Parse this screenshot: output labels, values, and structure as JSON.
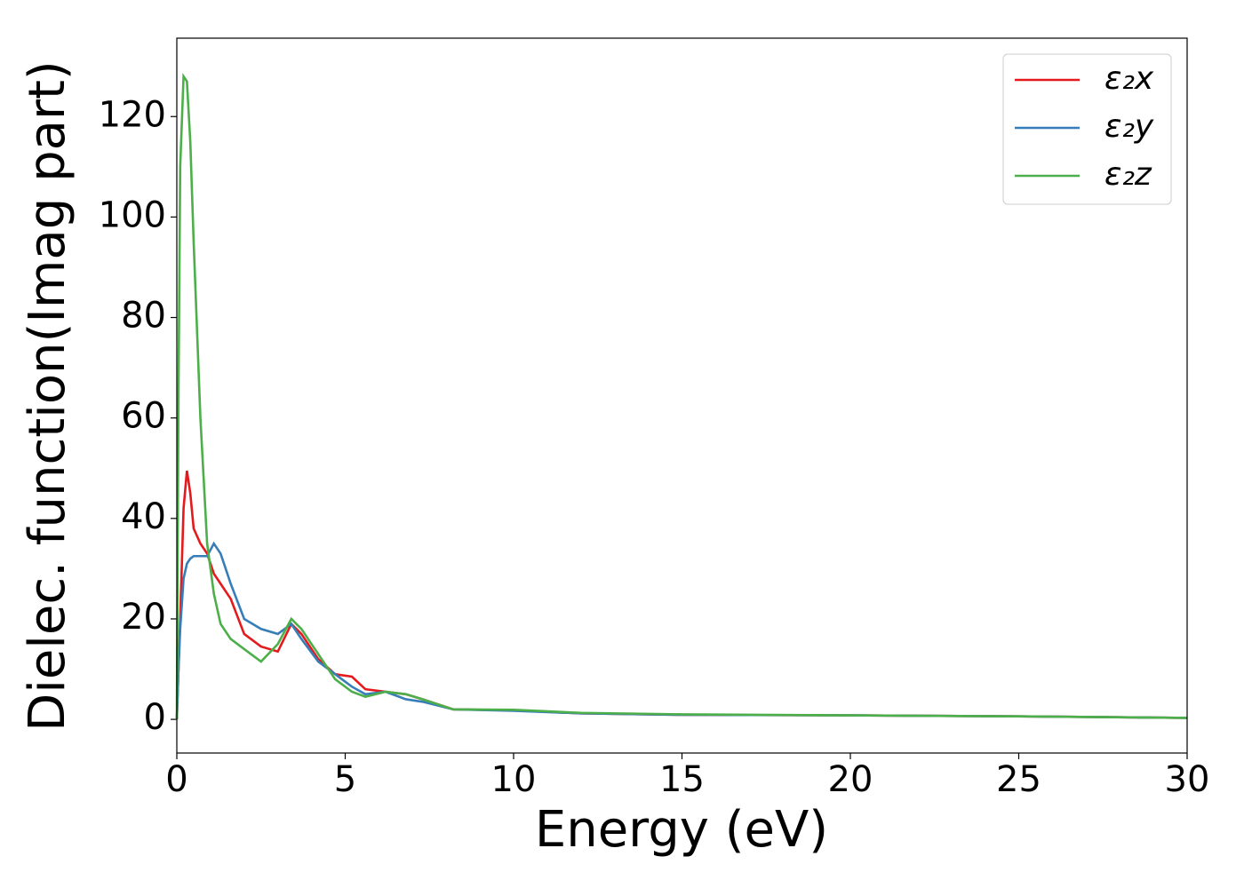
{
  "chart_data": {
    "type": "line",
    "x_label": "Energy (eV)",
    "y_label": "Dielec. function(Imag part)",
    "x": [
      0,
      0.05,
      0.1,
      0.2,
      0.3,
      0.4,
      0.5,
      0.7,
      0.9,
      1.1,
      1.3,
      1.6,
      2.0,
      2.5,
      3.0,
      3.4,
      3.7,
      4.2,
      4.7,
      5.2,
      5.6,
      6.2,
      6.8,
      7.3,
      8.2,
      10,
      12,
      15,
      20,
      25,
      30
    ],
    "series": [
      {
        "name": "ε₂x",
        "color": "#e41a1c",
        "values": [
          0,
          10,
          20,
          42,
          49.5,
          45,
          38,
          35,
          33,
          29,
          27,
          24,
          17,
          14.5,
          13.5,
          19,
          17,
          12,
          9,
          8.5,
          6,
          5.5,
          5,
          4,
          2,
          1.8,
          1.2,
          0.9,
          0.8,
          0.6,
          0.3
        ]
      },
      {
        "name": "ε₂y",
        "color": "#377eb8",
        "values": [
          0,
          10,
          18,
          28,
          31,
          32,
          32.5,
          32.5,
          32.5,
          35,
          33,
          27,
          20,
          18,
          17,
          19,
          16,
          11.5,
          9,
          6.5,
          5,
          5.5,
          4,
          3.5,
          2,
          1.7,
          1.2,
          0.9,
          0.8,
          0.6,
          0.3
        ]
      },
      {
        "name": "ε₂z",
        "color": "#4daf4a",
        "values": [
          0,
          65,
          110,
          128,
          127,
          115,
          95,
          60,
          35,
          25,
          19,
          16,
          14,
          11.5,
          15,
          20,
          18,
          13,
          8,
          5.5,
          4.5,
          5.5,
          5,
          4,
          2,
          1.9,
          1.3,
          1,
          0.8,
          0.6,
          0.3
        ]
      }
    ],
    "xlim": [
      0,
      30
    ],
    "xticks": [
      0,
      5,
      10,
      15,
      20,
      25,
      30
    ],
    "ylim": [
      -6.7,
      135.6
    ],
    "yticks": [
      0,
      20,
      40,
      60,
      80,
      100,
      120
    ],
    "grid": false,
    "legend": "upper right"
  }
}
